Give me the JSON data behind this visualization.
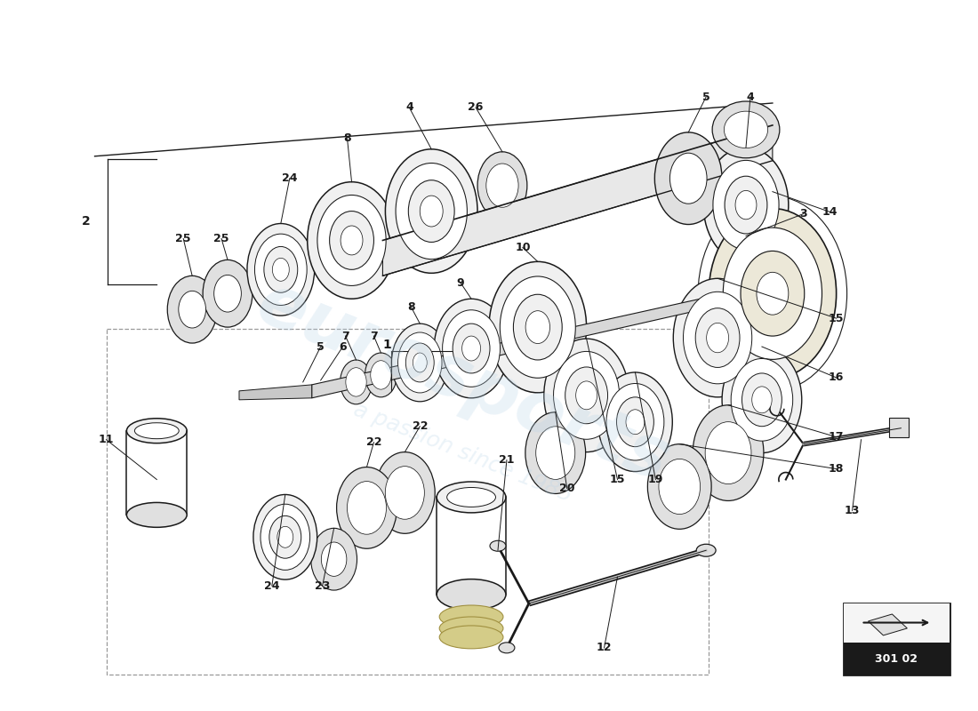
{
  "background_color": "#ffffff",
  "diagram_code": "301 02",
  "color_dark": "#1a1a1a",
  "color_gray": "#999999",
  "color_fill": "#f0f0f0",
  "color_fill2": "#e0e0e0",
  "color_white": "#ffffff",
  "color_yellow": "#d4cc88",
  "watermark_color": "#b8d4e8"
}
